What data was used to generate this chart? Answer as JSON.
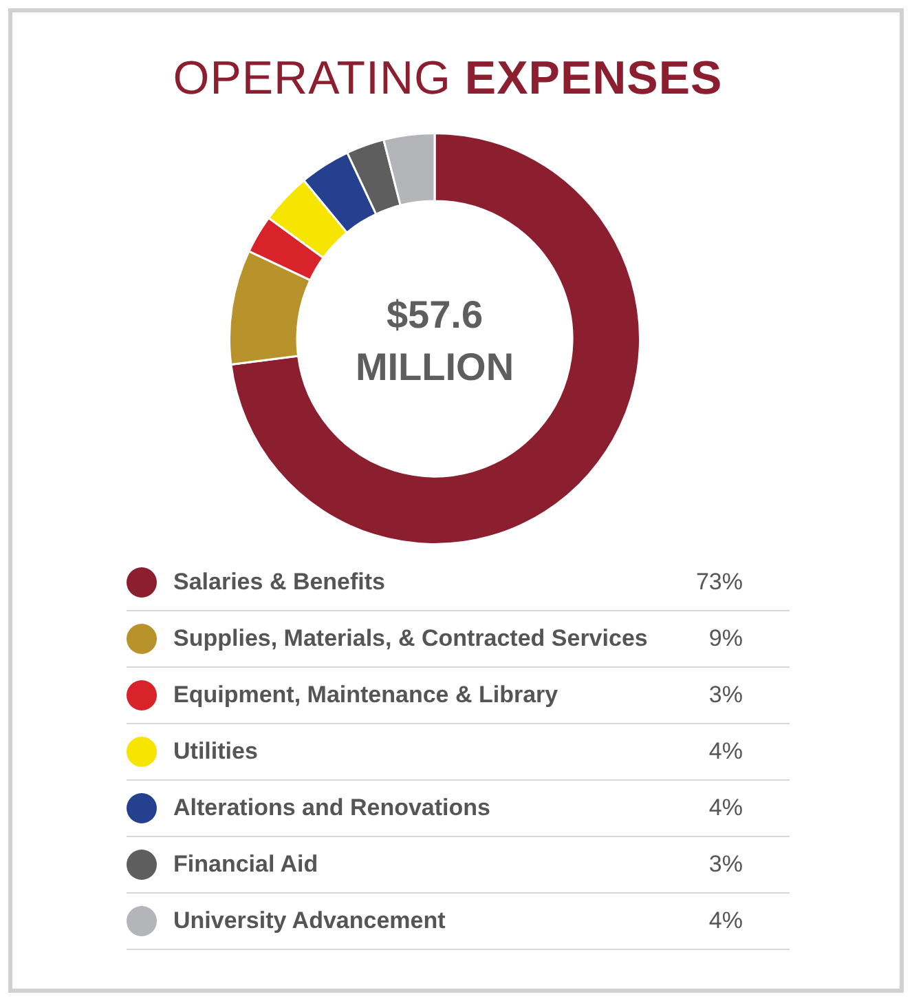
{
  "chart_data": {
    "type": "donut",
    "title": "OPERATING EXPENSES",
    "categories": [
      "Salaries & Benefits",
      "Supplies, Materials, & Contracted Services",
      "Equipment, Maintenance & Library",
      "Utilities",
      "Alterations and Renovations",
      "Financial Aid",
      "University Advancement"
    ],
    "values": [
      73,
      9,
      3,
      4,
      4,
      3,
      4
    ],
    "colors": [
      "#8b1e2f",
      "#b8922a",
      "#d8232a",
      "#f5e500",
      "#24408e",
      "#5e5e5e",
      "#b4b5b8"
    ],
    "value_labels": [
      "73%",
      "9%",
      "3%",
      "4%",
      "4%",
      "3%",
      "4%"
    ],
    "annotations": [
      "$57.6 MILLION"
    ],
    "legend": "bottom"
  }
}
